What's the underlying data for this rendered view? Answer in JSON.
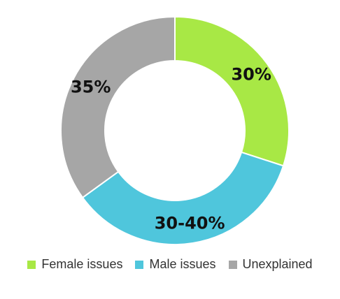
{
  "chart_data": {
    "type": "pie",
    "variant": "donut",
    "slices": [
      {
        "name": "Female issues",
        "value": 30,
        "label": "30%",
        "color": "#a8e845"
      },
      {
        "name": "Male issues",
        "value": 35,
        "label": "30-40%",
        "color": "#4fc6dc"
      },
      {
        "name": "Unexplained",
        "value": 35,
        "label": "35%",
        "color": "#a6a6a6"
      }
    ],
    "legend": {
      "position": "bottom"
    }
  }
}
